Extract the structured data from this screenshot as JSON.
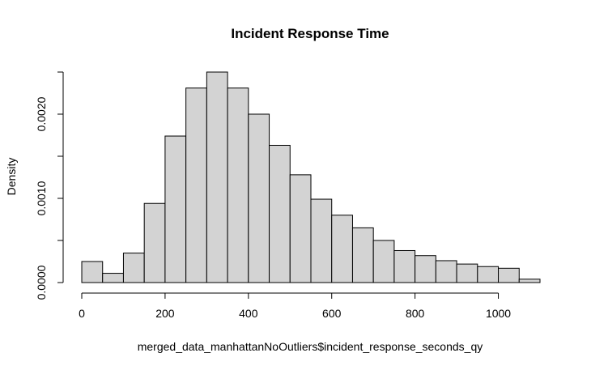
{
  "chart_data": {
    "type": "bar",
    "histogram": true,
    "title": "Incident Response Time",
    "xlabel": "merged_data_manhattanNoOutliers$incident_response_seconds_qy",
    "ylabel": "Density",
    "bin_width": 50,
    "bin_edges": [
      0,
      50,
      100,
      150,
      200,
      250,
      300,
      350,
      400,
      450,
      500,
      550,
      600,
      650,
      700,
      750,
      800,
      850,
      900,
      950,
      1000,
      1050,
      1100
    ],
    "values": [
      0.00025,
      0.00011,
      0.00035,
      0.00094,
      0.00174,
      0.00231,
      0.0025,
      0.00231,
      0.002,
      0.00163,
      0.00128,
      0.00099,
      0.0008,
      0.00065,
      0.0005,
      0.00038,
      0.00032,
      0.00026,
      0.00022,
      0.00019,
      0.00017,
      4e-05
    ],
    "xlim": [
      0,
      1100
    ],
    "ylim": [
      0,
      0.0025
    ],
    "x_ticks": [
      0,
      200,
      400,
      600,
      800,
      1000
    ],
    "x_tick_labels": [
      "0",
      "200",
      "400",
      "600",
      "800",
      "1000"
    ],
    "y_ticks": [
      0,
      0.0005,
      0.001,
      0.0015,
      0.002,
      0.0025
    ],
    "y_tick_labels": [
      "0.0000",
      "",
      "0.0010",
      "",
      "0.0020",
      ""
    ],
    "bar_fill": "#d3d3d3",
    "bar_stroke": "#000000",
    "grid": false
  }
}
